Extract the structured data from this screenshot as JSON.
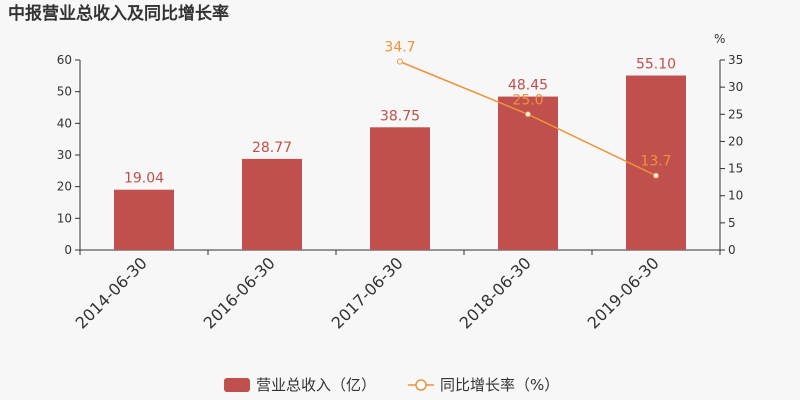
{
  "chart_data": {
    "type": "bar",
    "title": "中报营业总收入及同比增长率",
    "categories": [
      "2014-06-30",
      "2016-06-30",
      "2017-06-30",
      "2018-06-30",
      "2019-06-30"
    ],
    "series": [
      {
        "name": "营业总收入（亿）",
        "type": "bar",
        "axis": "left",
        "values": [
          19.04,
          28.77,
          38.75,
          48.45,
          55.1
        ],
        "labels": [
          "19.04",
          "28.77",
          "38.75",
          "48.45",
          "55.10"
        ],
        "color": "#c0504d"
      },
      {
        "name": "同比增长率（%）",
        "type": "line",
        "axis": "right",
        "values": [
          null,
          null,
          34.7,
          25.0,
          13.7
        ],
        "labels": [
          "",
          "",
          "34.7",
          "25.0",
          "13.7"
        ],
        "color": "#f0923a"
      }
    ],
    "left_axis": {
      "ylim": [
        0,
        60
      ],
      "ticks": [
        "0",
        "10",
        "20",
        "30",
        "40",
        "50",
        "60"
      ]
    },
    "right_axis": {
      "ylim": [
        0,
        35
      ],
      "ticks": [
        "0",
        "5",
        "10",
        "15",
        "20",
        "25",
        "30",
        "35"
      ],
      "unit": "%"
    },
    "grid": false,
    "legend": "bottom-center"
  }
}
